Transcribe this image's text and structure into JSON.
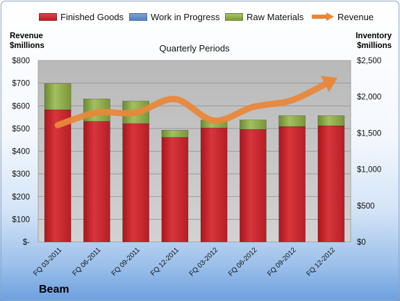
{
  "legend": {
    "finished_goods": "Finished Goods",
    "work_in_progress": "Work in Progress",
    "raw_materials": "Raw Materials",
    "revenue": "Revenue"
  },
  "axis": {
    "left_title_line1": "Revenue",
    "left_title_line2": "$millions",
    "right_title_line1": "Inventory",
    "right_title_line2": "$millions"
  },
  "plot_title": "Quarterly Periods",
  "company": "Beam",
  "colors": {
    "finished_goods": "#c9232b",
    "work_in_progress": "#4f81bd",
    "raw_materials": "#8fae47",
    "revenue": "#e8883a",
    "plot_background": "#c4c4c4"
  },
  "chart_data": {
    "type": "bar",
    "stacked": true,
    "categories": [
      "FQ 03-2011",
      "FQ 06-2011",
      "FQ 09-2011",
      "FQ 12-2011",
      "FQ 03-2012",
      "FQ 06-2012",
      "FQ 09-2012",
      "FQ 12-2012"
    ],
    "series": [
      {
        "name": "Finished Goods",
        "axis": "right",
        "values": [
          1820,
          1660,
          1630,
          1440,
          1570,
          1550,
          1590,
          1600
        ]
      },
      {
        "name": "Work in Progress",
        "axis": "right",
        "values": [
          0,
          0,
          0,
          0,
          0,
          0,
          0,
          0
        ]
      },
      {
        "name": "Raw Materials",
        "axis": "right",
        "values": [
          360,
          310,
          310,
          100,
          110,
          130,
          150,
          140
        ]
      },
      {
        "name": "Revenue",
        "type": "line",
        "axis": "left",
        "values": [
          515,
          570,
          570,
          630,
          535,
          595,
          625,
          710
        ]
      }
    ],
    "left_axis": {
      "label": "Revenue $millions",
      "range": [
        0,
        800
      ],
      "ticks": [
        "$-",
        "$100",
        "$200",
        "$300",
        "$400",
        "$500",
        "$600",
        "$700",
        "$800"
      ]
    },
    "right_axis": {
      "label": "Inventory $millions",
      "range": [
        0,
        2500
      ],
      "ticks": [
        "$0",
        "$500",
        "$1,000",
        "$1,500",
        "$2,000",
        "$2,500"
      ]
    },
    "xlabel": "Quarterly Periods",
    "grid": true,
    "legend_position": "top"
  }
}
